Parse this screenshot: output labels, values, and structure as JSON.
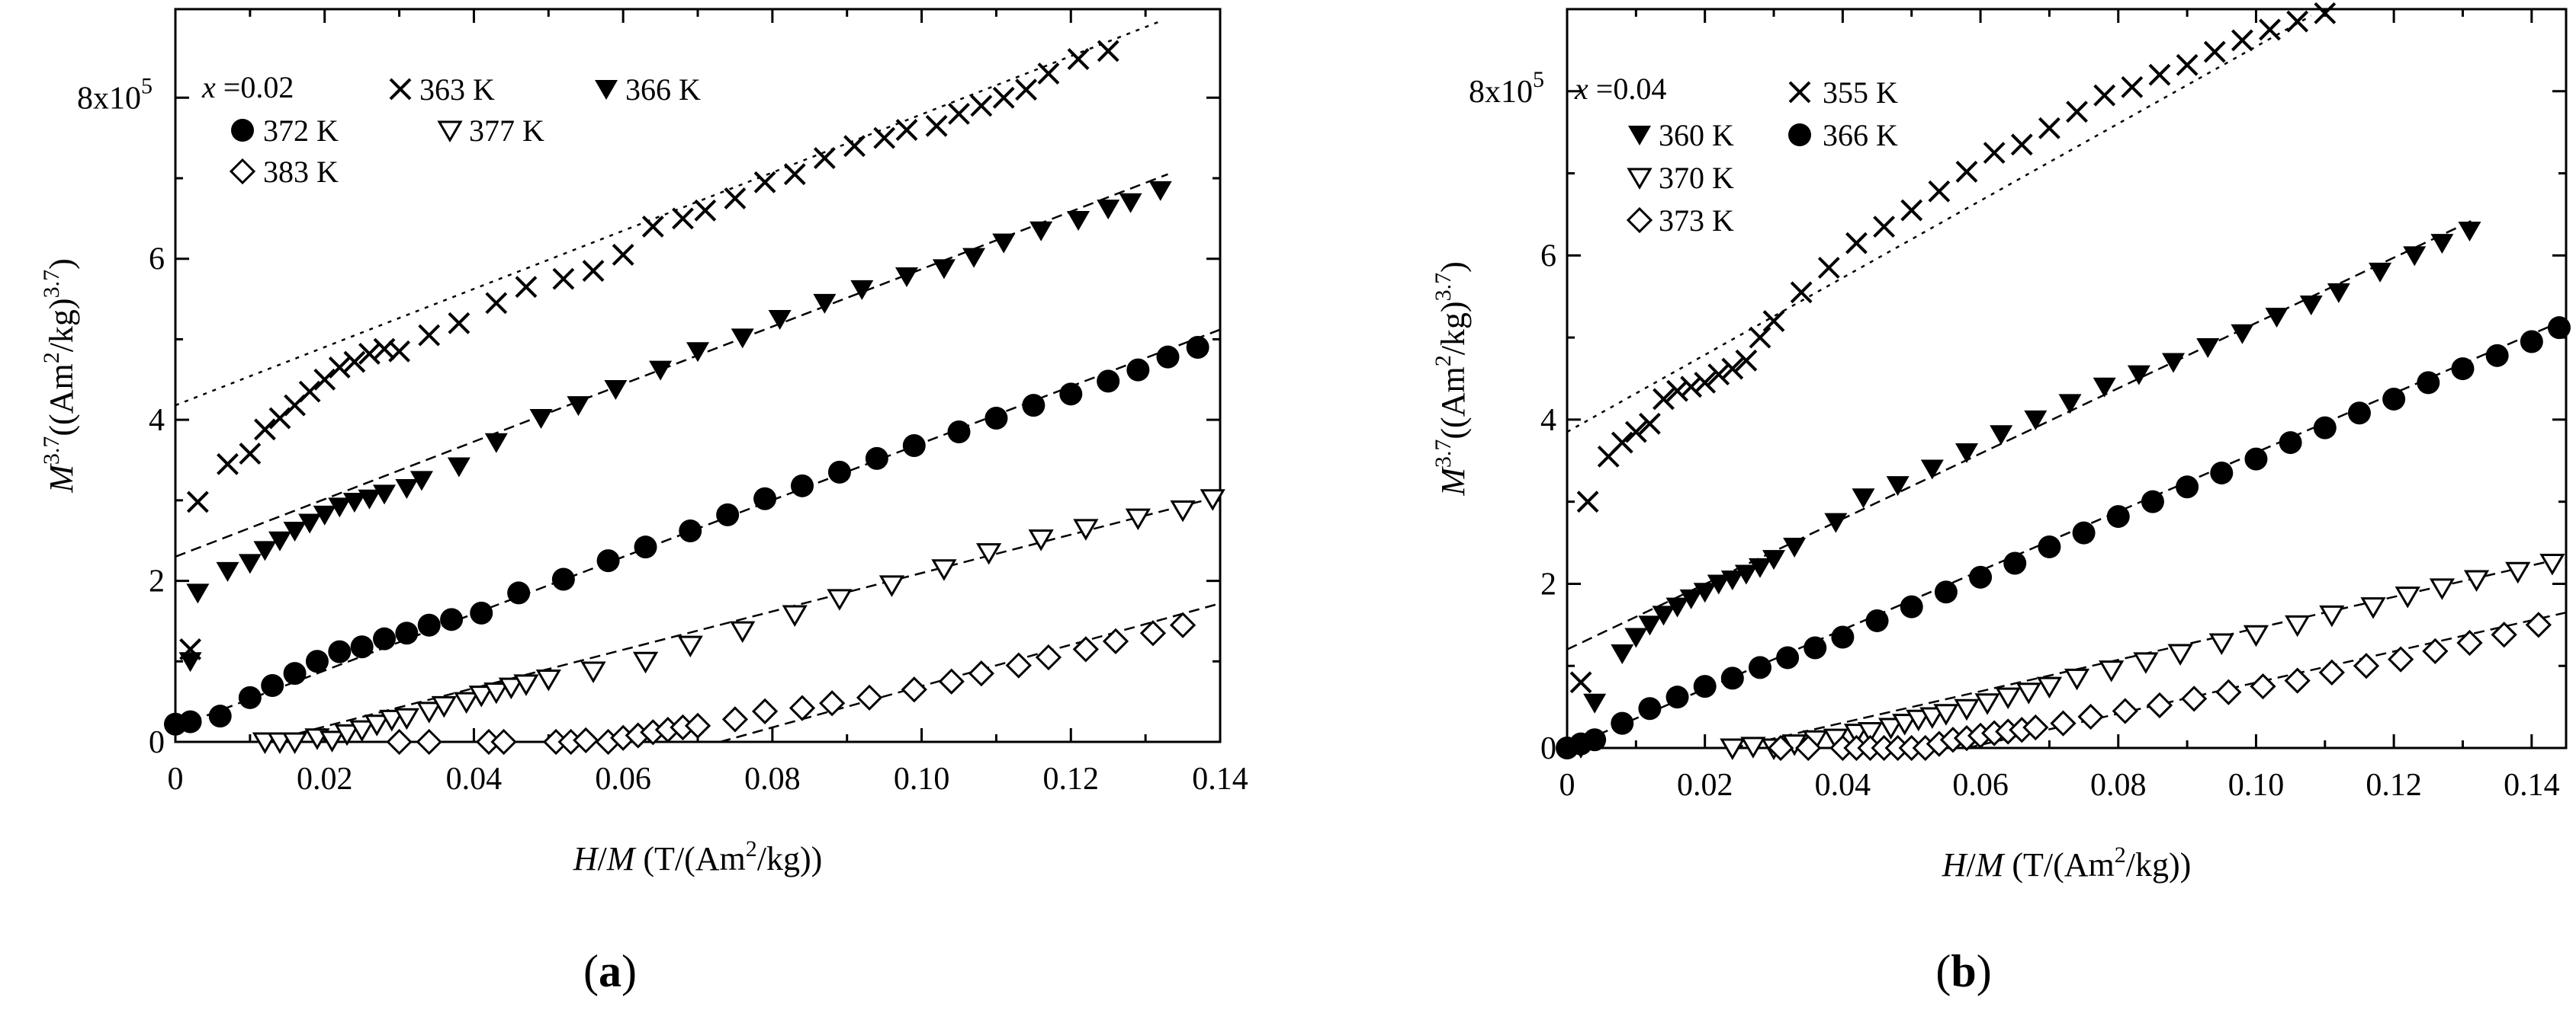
{
  "chart_data": [
    {
      "type": "scatter",
      "panel_label": "(a)",
      "panel_letter": "a",
      "composition": "x =0.02",
      "xlabel": "H/M (T/(Am²/kg))",
      "ylabel": "M³·7((Am²/kg)³·7)",
      "xlim": [
        0,
        0.14
      ],
      "ylim": [
        0,
        9.1
      ],
      "y_scale_note": "8x10^5",
      "xticks": [
        0,
        0.02,
        0.04,
        0.06,
        0.08,
        0.1,
        0.12,
        0.14
      ],
      "xtick_labels": [
        "0",
        "0.02",
        "0.04",
        "0.06",
        "0.08",
        "0.10",
        "0.12",
        "0.14"
      ],
      "yticks": [
        0,
        2,
        4,
        6,
        8
      ],
      "ytick_labels": [
        "0",
        "2",
        "4",
        "6",
        "8x10"
      ],
      "y_exponent": "5",
      "series": [
        {
          "name": "363 K",
          "marker": "x",
          "x": [
            0.002,
            0.003,
            0.007,
            0.01,
            0.012,
            0.014,
            0.016,
            0.018,
            0.02,
            0.022,
            0.024,
            0.026,
            0.028,
            0.03,
            0.034,
            0.038,
            0.043,
            0.047,
            0.052,
            0.056,
            0.06,
            0.064,
            0.068,
            0.071,
            0.075,
            0.079,
            0.083,
            0.087,
            0.091,
            0.095,
            0.098,
            0.102,
            0.105,
            0.108,
            0.111,
            0.114,
            0.117,
            0.121,
            0.125
          ],
          "y": [
            1.15,
            2.98,
            3.45,
            3.58,
            3.88,
            4.02,
            4.18,
            4.35,
            4.5,
            4.65,
            4.72,
            4.82,
            4.88,
            4.85,
            5.05,
            5.2,
            5.45,
            5.65,
            5.75,
            5.85,
            6.05,
            6.4,
            6.5,
            6.6,
            6.75,
            6.95,
            7.05,
            7.25,
            7.4,
            7.5,
            7.6,
            7.65,
            7.8,
            7.9,
            8.0,
            8.1,
            8.3,
            8.48,
            8.58
          ],
          "fit": {
            "x": [
              0,
              0.132
            ],
            "y": [
              4.18,
              8.95
            ],
            "style": "dotted"
          }
        },
        {
          "name": "366 K",
          "marker": "filled-down-triangle",
          "x": [
            0.002,
            0.003,
            0.007,
            0.01,
            0.012,
            0.014,
            0.016,
            0.018,
            0.02,
            0.022,
            0.024,
            0.026,
            0.028,
            0.031,
            0.033,
            0.038,
            0.043,
            0.049,
            0.054,
            0.059,
            0.065,
            0.07,
            0.076,
            0.081,
            0.087,
            0.092,
            0.098,
            0.103,
            0.107,
            0.111,
            0.116,
            0.121,
            0.125,
            0.128,
            0.132
          ],
          "y": [
            1.0,
            1.85,
            2.12,
            2.22,
            2.38,
            2.5,
            2.62,
            2.72,
            2.82,
            2.92,
            2.98,
            3.02,
            3.08,
            3.15,
            3.25,
            3.42,
            3.72,
            4.02,
            4.18,
            4.38,
            4.62,
            4.85,
            5.02,
            5.25,
            5.45,
            5.62,
            5.78,
            5.88,
            6.02,
            6.2,
            6.35,
            6.48,
            6.62,
            6.7,
            6.85
          ],
          "fit": {
            "x": [
              0,
              0.133
            ],
            "y": [
              2.3,
              7.05
            ],
            "style": "dashed"
          }
        },
        {
          "name": "372 K",
          "marker": "filled-circle",
          "x": [
            0.0,
            0.002,
            0.006,
            0.01,
            0.013,
            0.016,
            0.019,
            0.022,
            0.025,
            0.028,
            0.031,
            0.034,
            0.037,
            0.041,
            0.046,
            0.052,
            0.058,
            0.063,
            0.069,
            0.074,
            0.079,
            0.084,
            0.089,
            0.094,
            0.099,
            0.105,
            0.11,
            0.115,
            0.12,
            0.125,
            0.129,
            0.133,
            0.137
          ],
          "y": [
            0.22,
            0.25,
            0.32,
            0.55,
            0.7,
            0.85,
            1.0,
            1.12,
            1.18,
            1.28,
            1.35,
            1.45,
            1.52,
            1.6,
            1.85,
            2.02,
            2.25,
            2.42,
            2.62,
            2.82,
            3.02,
            3.18,
            3.35,
            3.52,
            3.68,
            3.85,
            4.02,
            4.18,
            4.32,
            4.48,
            4.62,
            4.78,
            4.9
          ],
          "fit": {
            "x": [
              0,
              0.14
            ],
            "y": [
              0.18,
              5.12
            ],
            "style": "dashed"
          }
        },
        {
          "name": "377 K",
          "marker": "open-down-triangle",
          "x": [
            0.012,
            0.014,
            0.016,
            0.019,
            0.021,
            0.023,
            0.025,
            0.027,
            0.029,
            0.031,
            0.034,
            0.036,
            0.039,
            0.041,
            0.043,
            0.045,
            0.047,
            0.05,
            0.056,
            0.063,
            0.069,
            0.076,
            0.083,
            0.089,
            0.096,
            0.103,
            0.109,
            0.116,
            0.122,
            0.129,
            0.135,
            0.139
          ],
          "y": [
            0.0,
            0.0,
            0.0,
            0.05,
            0.02,
            0.1,
            0.15,
            0.22,
            0.28,
            0.3,
            0.38,
            0.45,
            0.5,
            0.58,
            0.62,
            0.68,
            0.72,
            0.78,
            0.88,
            1.0,
            1.2,
            1.38,
            1.58,
            1.78,
            1.95,
            2.15,
            2.35,
            2.52,
            2.65,
            2.78,
            2.88,
            3.02
          ],
          "fit": {
            "x": [
              0.012,
              0.14
            ],
            "y": [
              0.0,
              3.05
            ],
            "style": "dashed"
          }
        },
        {
          "name": "383 K",
          "marker": "open-diamond",
          "x": [
            0.03,
            0.034,
            0.042,
            0.044,
            0.051,
            0.053,
            0.055,
            0.058,
            0.06,
            0.062,
            0.064,
            0.066,
            0.068,
            0.07,
            0.075,
            0.079,
            0.084,
            0.088,
            0.093,
            0.099,
            0.104,
            0.108,
            0.113,
            0.117,
            0.122,
            0.126,
            0.131,
            0.135
          ],
          "y": [
            0.0,
            0.0,
            0.0,
            0.0,
            0.0,
            0.0,
            0.02,
            0.0,
            0.05,
            0.08,
            0.12,
            0.15,
            0.18,
            0.2,
            0.28,
            0.38,
            0.42,
            0.48,
            0.55,
            0.65,
            0.75,
            0.85,
            0.95,
            1.05,
            1.15,
            1.25,
            1.35,
            1.45
          ],
          "fit": {
            "x": [
              0.073,
              0.14
            ],
            "y": [
              0.0,
              1.72
            ],
            "style": "dashed"
          }
        }
      ]
    },
    {
      "type": "scatter",
      "panel_label": "(b)",
      "panel_letter": "b",
      "composition": "x =0.04",
      "xlabel": "H/M (T/(Am²/kg))",
      "ylabel": "M³·7((Am²/kg)³·7)",
      "xlim": [
        0,
        0.145
      ],
      "ylim": [
        0,
        9.0
      ],
      "y_scale_note": "8x10^5",
      "xticks": [
        0,
        0.02,
        0.04,
        0.06,
        0.08,
        0.1,
        0.12,
        0.14
      ],
      "xtick_labels": [
        "0",
        "0.02",
        "0.04",
        "0.06",
        "0.08",
        "0.10",
        "0.12",
        "0.14"
      ],
      "yticks": [
        0,
        2,
        4,
        6,
        8
      ],
      "ytick_labels": [
        "0",
        "2",
        "4",
        "6",
        "8x10"
      ],
      "y_exponent": "5",
      "series": [
        {
          "name": "355 K",
          "marker": "x",
          "x": [
            0.002,
            0.003,
            0.006,
            0.008,
            0.01,
            0.012,
            0.014,
            0.016,
            0.018,
            0.02,
            0.022,
            0.024,
            0.026,
            0.028,
            0.03,
            0.034,
            0.038,
            0.042,
            0.046,
            0.05,
            0.054,
            0.058,
            0.062,
            0.066,
            0.07,
            0.074,
            0.078,
            0.082,
            0.086,
            0.09,
            0.094,
            0.098,
            0.102,
            0.106,
            0.11
          ],
          "y": [
            0.8,
            3.0,
            3.55,
            3.72,
            3.85,
            3.95,
            4.25,
            4.35,
            4.4,
            4.45,
            4.55,
            4.62,
            4.72,
            5.0,
            5.2,
            5.55,
            5.85,
            6.15,
            6.35,
            6.55,
            6.78,
            7.02,
            7.25,
            7.35,
            7.55,
            7.75,
            7.95,
            8.05,
            8.2,
            8.32,
            8.48,
            8.62,
            8.75,
            8.85,
            8.95
          ],
          "fit": {
            "x": [
              0,
              0.108
            ],
            "y": [
              3.85,
              8.92
            ],
            "style": "dotted"
          }
        },
        {
          "name": "360 K",
          "marker": "filled-down-triangle",
          "x": [
            0.002,
            0.004,
            0.008,
            0.01,
            0.012,
            0.014,
            0.016,
            0.018,
            0.02,
            0.022,
            0.024,
            0.026,
            0.028,
            0.03,
            0.033,
            0.039,
            0.043,
            0.048,
            0.053,
            0.058,
            0.063,
            0.068,
            0.073,
            0.078,
            0.083,
            0.088,
            0.093,
            0.098,
            0.103,
            0.108,
            0.112,
            0.118,
            0.123,
            0.127,
            0.131
          ],
          "y": [
            0.0,
            0.55,
            1.15,
            1.35,
            1.5,
            1.62,
            1.72,
            1.82,
            1.9,
            2.0,
            2.05,
            2.12,
            2.2,
            2.3,
            2.45,
            2.75,
            3.05,
            3.2,
            3.4,
            3.6,
            3.82,
            4.0,
            4.2,
            4.4,
            4.55,
            4.7,
            4.88,
            5.05,
            5.25,
            5.4,
            5.55,
            5.8,
            6.0,
            6.15,
            6.3
          ],
          "fit": {
            "x": [
              0,
              0.132
            ],
            "y": [
              1.2,
              6.45
            ],
            "style": "dashed"
          }
        },
        {
          "name": "366 K",
          "marker": "filled-circle",
          "x": [
            0.0,
            0.002,
            0.004,
            0.008,
            0.012,
            0.016,
            0.02,
            0.024,
            0.028,
            0.032,
            0.036,
            0.04,
            0.045,
            0.05,
            0.055,
            0.06,
            0.065,
            0.07,
            0.075,
            0.08,
            0.085,
            0.09,
            0.095,
            0.1,
            0.105,
            0.11,
            0.115,
            0.12,
            0.125,
            0.13,
            0.135,
            0.14,
            0.144
          ],
          "y": [
            0.0,
            0.05,
            0.1,
            0.3,
            0.48,
            0.62,
            0.75,
            0.85,
            0.98,
            1.1,
            1.22,
            1.35,
            1.55,
            1.72,
            1.9,
            2.08,
            2.25,
            2.45,
            2.62,
            2.82,
            3.0,
            3.18,
            3.35,
            3.52,
            3.72,
            3.9,
            4.08,
            4.25,
            4.45,
            4.62,
            4.78,
            4.95,
            5.12
          ],
          "fit": {
            "x": [
              0,
              0.145
            ],
            "y": [
              0.0,
              5.22
            ],
            "style": "dashed"
          }
        },
        {
          "name": "370 K",
          "marker": "open-down-triangle",
          "x": [
            0.024,
            0.027,
            0.03,
            0.033,
            0.036,
            0.039,
            0.042,
            0.044,
            0.047,
            0.049,
            0.051,
            0.053,
            0.055,
            0.058,
            0.061,
            0.064,
            0.067,
            0.07,
            0.074,
            0.079,
            0.084,
            0.089,
            0.095,
            0.1,
            0.106,
            0.111,
            0.117,
            0.122,
            0.127,
            0.132,
            0.138,
            0.143
          ],
          "y": [
            0.0,
            0.02,
            0.0,
            0.05,
            0.1,
            0.12,
            0.18,
            0.2,
            0.25,
            0.3,
            0.35,
            0.38,
            0.42,
            0.48,
            0.55,
            0.62,
            0.68,
            0.75,
            0.85,
            0.95,
            1.05,
            1.15,
            1.28,
            1.38,
            1.5,
            1.62,
            1.72,
            1.85,
            1.95,
            2.05,
            2.15,
            2.25
          ],
          "fit": {
            "x": [
              0.024,
              0.145
            ],
            "y": [
              0.0,
              2.32
            ],
            "style": "dashed"
          }
        },
        {
          "name": "373 K",
          "marker": "open-diamond",
          "x": [
            0.031,
            0.035,
            0.04,
            0.042,
            0.044,
            0.046,
            0.048,
            0.05,
            0.052,
            0.054,
            0.056,
            0.058,
            0.06,
            0.062,
            0.064,
            0.066,
            0.068,
            0.072,
            0.076,
            0.081,
            0.086,
            0.091,
            0.096,
            0.101,
            0.106,
            0.111,
            0.116,
            0.121,
            0.126,
            0.131,
            0.136,
            0.141
          ],
          "y": [
            0.0,
            0.0,
            0.0,
            0.0,
            0.0,
            0.0,
            0.0,
            0.0,
            0.0,
            0.05,
            0.1,
            0.12,
            0.15,
            0.18,
            0.2,
            0.22,
            0.25,
            0.3,
            0.38,
            0.45,
            0.52,
            0.6,
            0.68,
            0.75,
            0.82,
            0.92,
            1.0,
            1.08,
            1.18,
            1.28,
            1.38,
            1.5
          ],
          "fit": {
            "x": [
              0.058,
              0.145
            ],
            "y": [
              0.0,
              1.65
            ],
            "style": "dashed"
          }
        }
      ]
    }
  ]
}
